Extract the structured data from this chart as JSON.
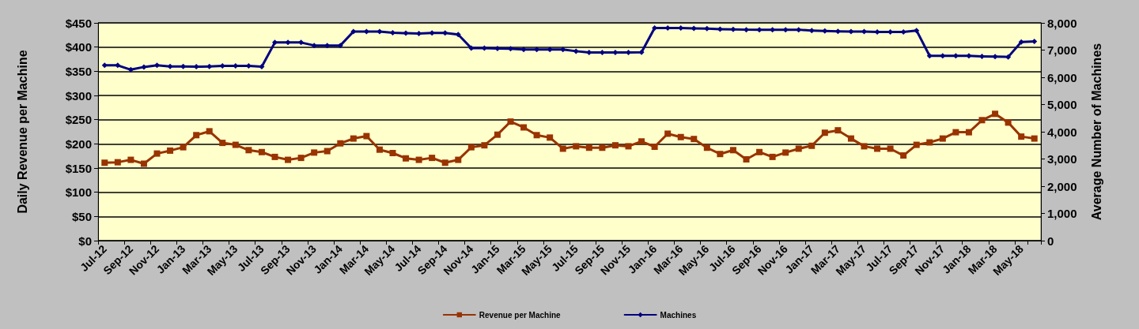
{
  "chart_data": {
    "type": "line",
    "ylabel": "Daily Revenue per Machine",
    "y2label": "Average Number of Machines",
    "categories": [
      "Jul-12",
      null,
      "Sep-12",
      null,
      "Nov-12",
      null,
      "Jan-13",
      null,
      "Mar-13",
      null,
      "May-13",
      null,
      "Jul-13",
      null,
      "Sep-13",
      null,
      "Nov-13",
      null,
      "Jan-14",
      null,
      "Mar-14",
      null,
      "May-14",
      null,
      "Jul-14",
      null,
      "Sep-14",
      null,
      "Nov-14",
      null,
      "Jan-15",
      null,
      "Mar-15",
      null,
      "May-15",
      null,
      "Jul-15",
      null,
      "Sep-15",
      null,
      "Nov-15",
      null,
      "Jan-16",
      null,
      "Mar-16",
      null,
      "May-16",
      null,
      "Jul-16",
      null,
      "Sep-16",
      null,
      "Nov-16",
      null,
      "Jan-17",
      null,
      "Mar-17",
      null,
      "May-17",
      null,
      "Jul-17",
      null,
      "Sep-17",
      null,
      "Nov-17",
      null,
      "Jan-18",
      null,
      "Mar-18",
      null,
      "May-18",
      null
    ],
    "series": [
      {
        "name": "Revenue per Machine",
        "color": "#993300",
        "marker": "square",
        "values": [
          161,
          162,
          167,
          159,
          180,
          186,
          193,
          218,
          226,
          202,
          198,
          187,
          183,
          173,
          167,
          171,
          182,
          185,
          201,
          211,
          216,
          188,
          181,
          170,
          167,
          171,
          161,
          167,
          193,
          197,
          219,
          246,
          234,
          218,
          213,
          190,
          195,
          192,
          192,
          197,
          195,
          205,
          194,
          221,
          214,
          210,
          192,
          179,
          187,
          168,
          183,
          173,
          182,
          190,
          196,
          223,
          228,
          211,
          195,
          190,
          190,
          176,
          198,
          203,
          211,
          224,
          224,
          249,
          262,
          244,
          215,
          211
        ]
      },
      {
        "name": "Machines",
        "color": "#000080",
        "marker": "diamond",
        "axis": "y2",
        "values": [
          6440,
          6440,
          6280,
          6380,
          6440,
          6400,
          6400,
          6390,
          6400,
          6420,
          6420,
          6420,
          6390,
          7280,
          7280,
          7280,
          7170,
          7170,
          7170,
          7680,
          7680,
          7680,
          7640,
          7620,
          7610,
          7630,
          7630,
          7570,
          7070,
          7070,
          7060,
          7050,
          7020,
          7020,
          7020,
          7020,
          6960,
          6910,
          6910,
          6910,
          6910,
          6920,
          7810,
          7810,
          7810,
          7800,
          7790,
          7770,
          7760,
          7750,
          7750,
          7750,
          7750,
          7750,
          7720,
          7700,
          7690,
          7680,
          7680,
          7670,
          7670,
          7670,
          7720,
          6790,
          6790,
          6790,
          6790,
          6770,
          6760,
          6750,
          7300,
          7320
        ]
      }
    ],
    "ylim": [
      0,
      450
    ],
    "yticks": [
      {
        "value": 0,
        "label": "$0"
      },
      {
        "value": 50,
        "label": "$50"
      },
      {
        "value": 100,
        "label": "$100"
      },
      {
        "value": 150,
        "label": "$150"
      },
      {
        "value": 200,
        "label": "$200"
      },
      {
        "value": 250,
        "label": "$250"
      },
      {
        "value": 300,
        "label": "$300"
      },
      {
        "value": 350,
        "label": "$350"
      },
      {
        "value": 400,
        "label": "$400"
      },
      {
        "value": 450,
        "label": "$450"
      }
    ],
    "y2lim": [
      0,
      8000
    ],
    "y2ticks": [
      0,
      {
        "value": 1000,
        "label": "1,000"
      },
      {
        "value": 2000,
        "label": "2,000"
      },
      {
        "value": 3000,
        "label": "3,000"
      },
      {
        "value": 4000,
        "label": "4,000"
      },
      {
        "value": 5000,
        "label": "5,000"
      },
      {
        "value": 6000,
        "label": "6,000"
      },
      {
        "value": 7000,
        "label": "7,000"
      },
      {
        "value": 8000,
        "label": "8,000"
      }
    ],
    "grid": "y",
    "legend": "bottom",
    "line_style": "solid"
  }
}
